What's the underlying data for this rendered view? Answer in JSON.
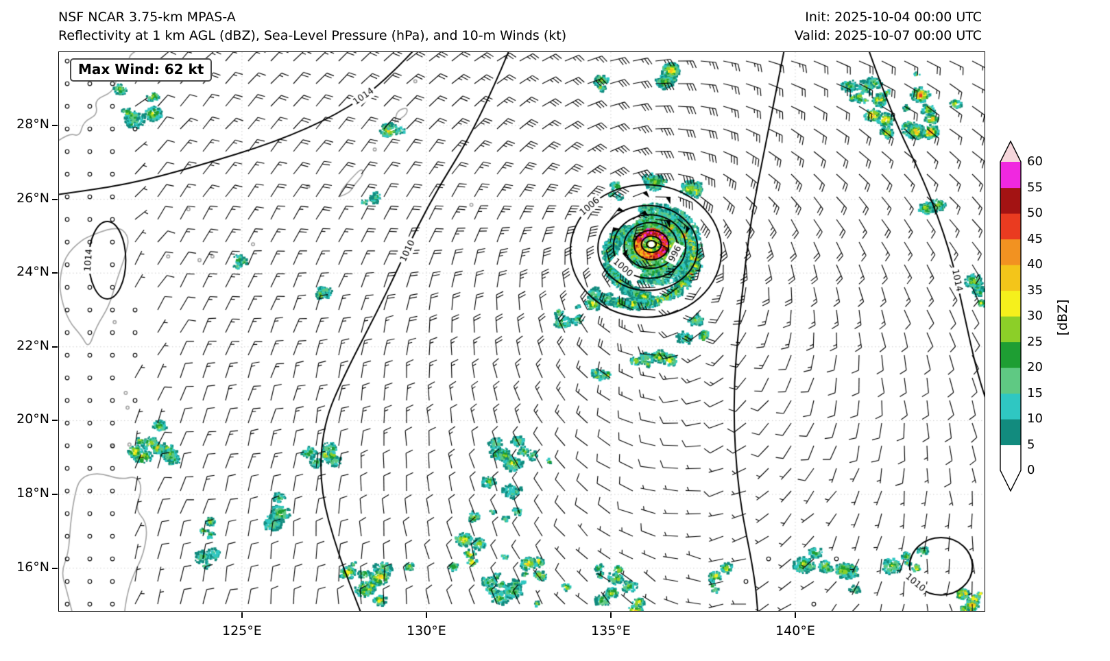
{
  "header": {
    "title_line1": "NSF NCAR 3.75-km MPAS-A",
    "title_line2": "Reflectivity at 1 km AGL (dBZ), Sea-Level Pressure (hPa), and 10-m Winds (kt)",
    "init_time": "Init: 2025-10-04 00:00 UTC",
    "valid_time": "Valid: 2025-10-07 00:00 UTC"
  },
  "chart_data": {
    "type": "heatmap",
    "title": "Reflectivity at 1 km AGL (dBZ), Sea-Level Pressure (hPa), and 10-m Winds (kt)",
    "model": "NSF NCAR 3.75-km MPAS-A",
    "max_wind_label": "Max Wind: 62 kt",
    "max_wind_kt": 62,
    "x_axis": {
      "tick_labels": [
        "125°E",
        "130°E",
        "135°E",
        "140°E"
      ],
      "tick_lons": [
        125,
        130,
        135,
        140
      ],
      "lon_range": [
        120.0,
        145.1
      ]
    },
    "y_axis": {
      "tick_labels": [
        "28°N",
        "26°N",
        "24°N",
        "22°N",
        "20°N",
        "18°N",
        "16°N"
      ],
      "tick_lats": [
        28,
        26,
        24,
        22,
        20,
        18,
        16
      ],
      "lat_range": [
        14.8,
        30.0
      ]
    },
    "colorbar": {
      "label": "[dBZ]",
      "tick_labels": [
        "60",
        "55",
        "50",
        "45",
        "40",
        "35",
        "30",
        "25",
        "20",
        "15",
        "10",
        "5",
        "0"
      ],
      "levels": [
        0,
        5,
        10,
        15,
        20,
        25,
        30,
        35,
        40,
        45,
        50,
        55,
        60
      ],
      "segment_colors": [
        "#ffffff",
        "#128b7e",
        "#2fc7c2",
        "#5fc983",
        "#1e9e33",
        "#8ccf28",
        "#f5f01c",
        "#f3c51a",
        "#f29221",
        "#ea3b20",
        "#a31313",
        "#f028e0"
      ],
      "over_color": "#f6d7dc",
      "under_color": "#ffffff"
    },
    "pressure_contours": {
      "labeled_values": [
        996,
        1000,
        1006,
        1010,
        1014
      ],
      "labels": [
        {
          "text": "1014",
          "lon": 128.3,
          "lat": 28.78,
          "rot": -35
        },
        {
          "text": "1014",
          "lon": 120.85,
          "lat": 24.35,
          "rot": -86
        },
        {
          "text": "1010",
          "lon": 129.5,
          "lat": 24.6,
          "rot": -65
        },
        {
          "text": "1006",
          "lon": 134.43,
          "lat": 25.8,
          "rot": -41
        },
        {
          "text": "1000",
          "lon": 135.32,
          "lat": 24.14,
          "rot": 41
        },
        {
          "text": "996",
          "lon": 136.75,
          "lat": 24.52,
          "rot": -62
        },
        {
          "text": "1014",
          "lon": 144.38,
          "lat": 23.8,
          "rot": 78
        },
        {
          "text": "1010",
          "lon": 143.25,
          "lat": 15.6,
          "rot": 40
        }
      ]
    },
    "storm": {
      "center_lon": 136.1,
      "center_lat": 24.78,
      "innermost_labeled_isobar_hpa": 996,
      "max_wind_kt": 62
    }
  }
}
